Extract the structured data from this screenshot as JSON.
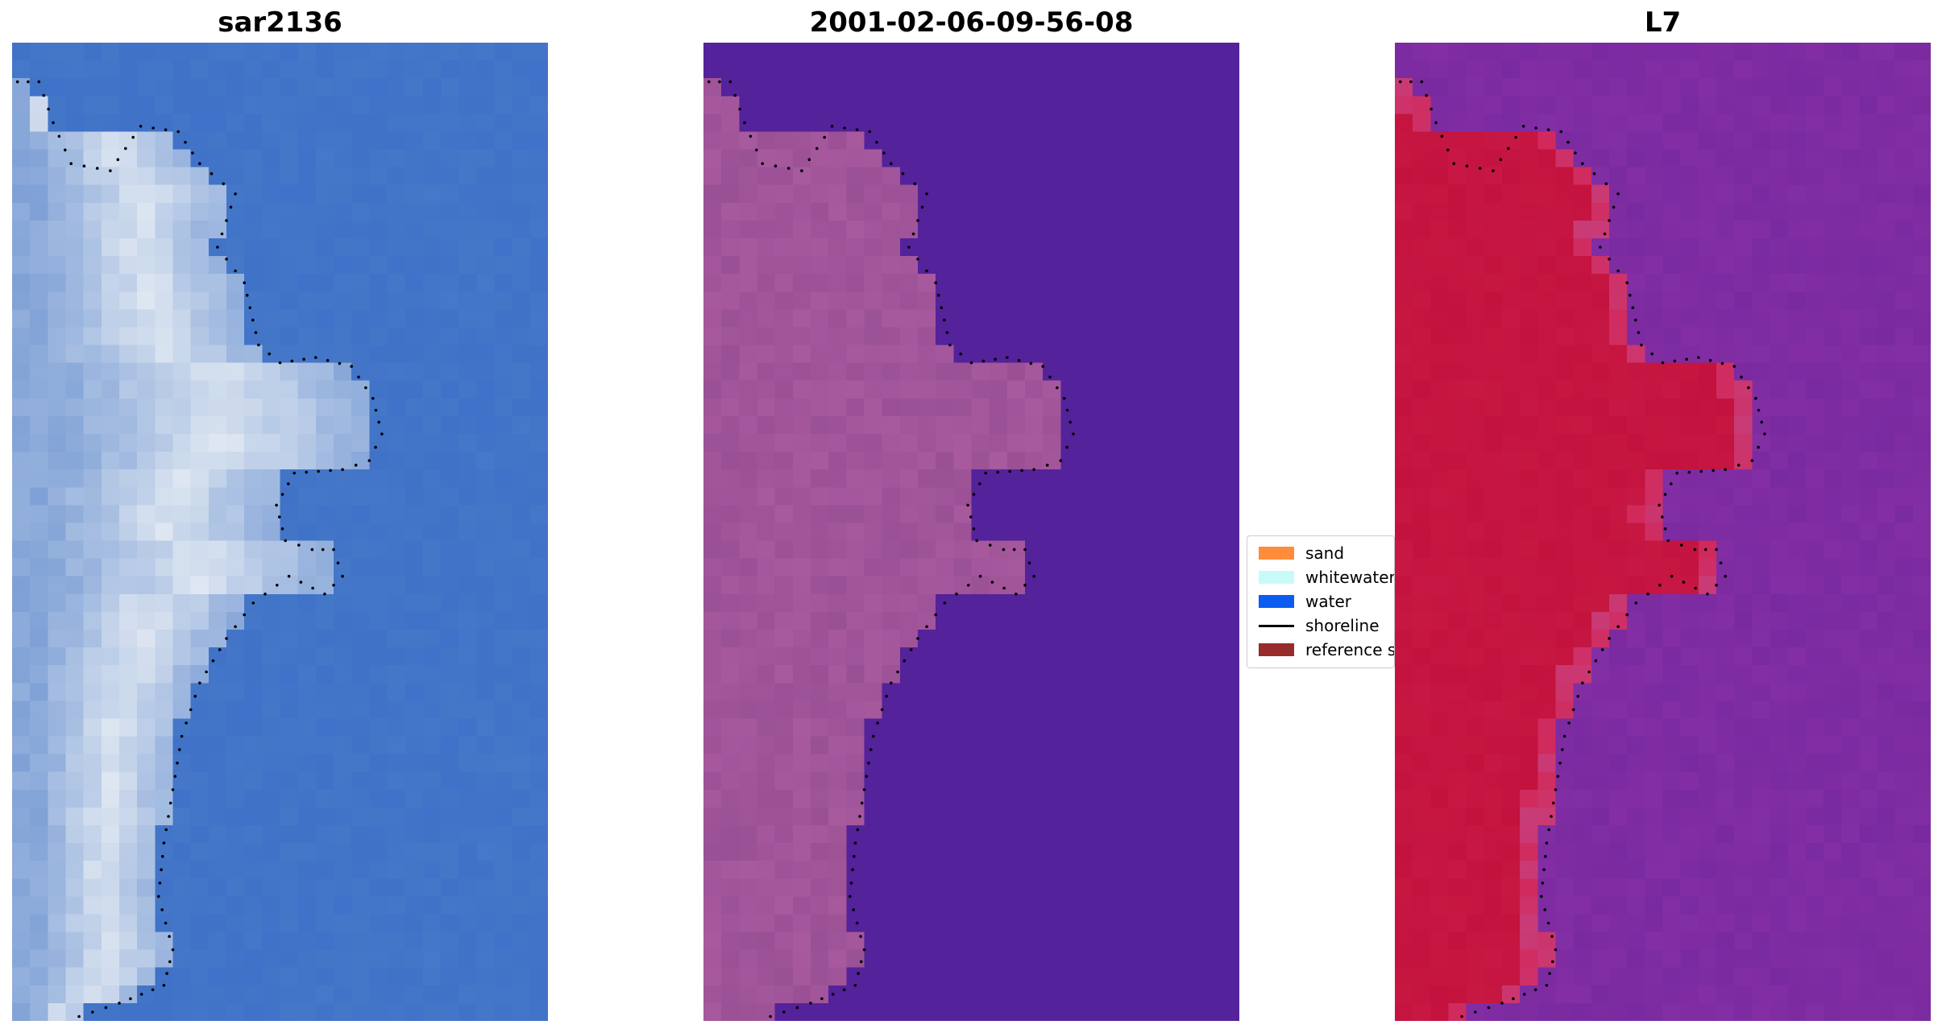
{
  "panels": [
    {
      "title": "sar2136",
      "style": "rgb"
    },
    {
      "title": "2001-02-06-09-56-08",
      "style": "classified"
    },
    {
      "title": "L7",
      "style": "index"
    }
  ],
  "legend": {
    "items": [
      {
        "label": "sand",
        "color": "#ff8c3a",
        "kind": "patch"
      },
      {
        "label": "whitewater",
        "color": "#c8fbf8",
        "kind": "patch"
      },
      {
        "label": "water",
        "color": "#0b5cf0",
        "kind": "patch"
      },
      {
        "label": "shoreline",
        "color": "#000000",
        "kind": "line"
      },
      {
        "label": "reference shoreline",
        "color": "#982b2b",
        "kind": "patch"
      }
    ]
  },
  "colors": {
    "rgb_water": "#3f72c8",
    "rgb_land": "#7ea0d6",
    "rgb_bright": "#e8eef4",
    "classified_background": "#54229a",
    "classified_land": "#a85a9e",
    "index_background": "#7a2aa0",
    "index_land": "#c4123e",
    "shoreline_dots": "#000000"
  }
}
